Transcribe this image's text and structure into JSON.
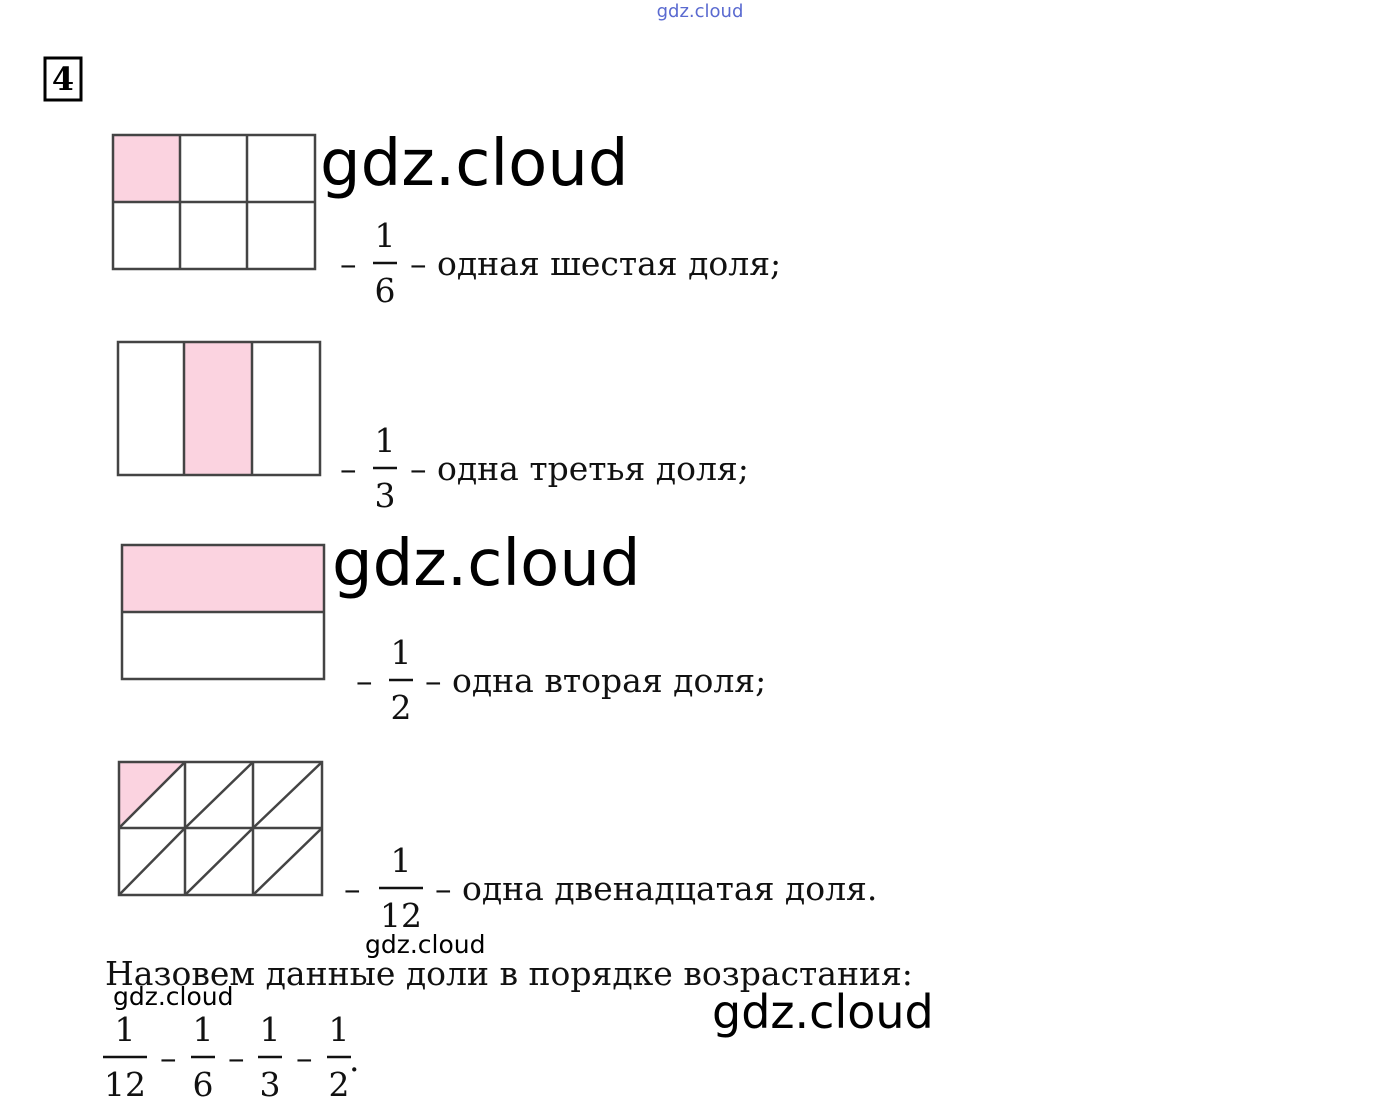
{
  "header": {
    "watermark": "gdz.cloud",
    "task_number": "4"
  },
  "watermarks": [
    "gdz.cloud",
    "gdz.cloud",
    "gdz.cloud",
    "gdz.cloud",
    "gdz.cloud"
  ],
  "items": [
    {
      "lead": "–",
      "numerator": "1",
      "denominator": "6",
      "text": "– одная шестая доля;"
    },
    {
      "lead": "–",
      "numerator": "1",
      "denominator": "3",
      "text": "– одна третья доля;"
    },
    {
      "lead": "–",
      "numerator": "1",
      "denominator": "2",
      "text": "– одна вторая доля;"
    },
    {
      "lead": "–",
      "numerator": "1",
      "denominator": "12",
      "text": "– одна двенадцатая доля."
    }
  ],
  "conclusion": {
    "text": "Назовем данные доли в порядке возрастания:",
    "fractions": [
      {
        "numerator": "1",
        "denominator": "12"
      },
      {
        "numerator": "1",
        "denominator": "6"
      },
      {
        "numerator": "1",
        "denominator": "3"
      },
      {
        "numerator": "1",
        "denominator": "2"
      }
    ],
    "separators": [
      "–",
      "–",
      "–"
    ],
    "end": "."
  }
}
